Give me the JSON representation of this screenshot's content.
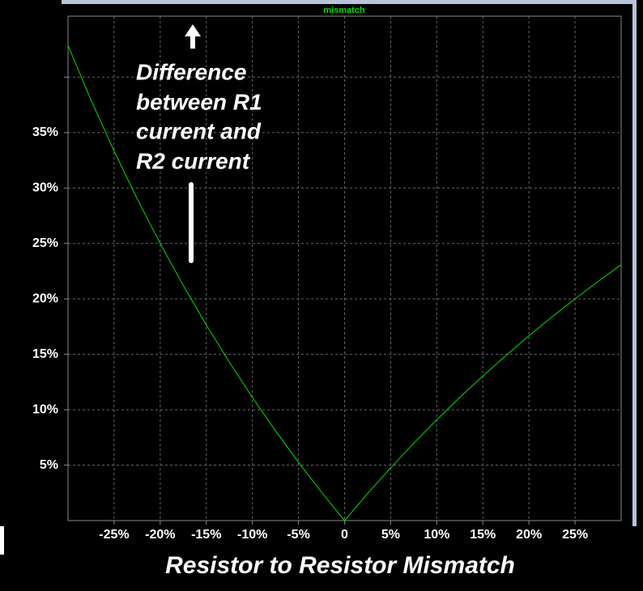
{
  "chart_data": {
    "type": "line",
    "title": "mismatch",
    "x_label": "Resistor to Resistor Mismatch",
    "annotation": [
      "Difference",
      "between R1",
      "current and",
      "R2 current"
    ],
    "x": [
      -30,
      -27.5,
      -25,
      -22.5,
      -20,
      -17.5,
      -15,
      -12.5,
      -10,
      -7.5,
      -5,
      -2.5,
      0,
      2.5,
      5,
      7.5,
      10,
      12.5,
      15,
      17.5,
      20,
      22.5,
      25,
      27.5,
      30
    ],
    "series": [
      {
        "name": "mismatch",
        "color": "#00e000",
        "values": [
          42.86,
          37.93,
          33.33,
          29.03,
          25.0,
          21.21,
          17.65,
          14.29,
          11.11,
          8.11,
          5.26,
          2.56,
          0,
          2.44,
          4.76,
          6.98,
          9.09,
          11.11,
          13.04,
          14.89,
          16.67,
          18.37,
          20.0,
          21.57,
          23.08
        ]
      }
    ],
    "xlim": [
      -30,
      30
    ],
    "xticks": [
      {
        "value": -25,
        "label": "-25%"
      },
      {
        "value": -20,
        "label": "-20%"
      },
      {
        "value": -15,
        "label": "-15%"
      },
      {
        "value": -10,
        "label": "-10%"
      },
      {
        "value": -5,
        "label": "-5%"
      },
      0,
      {
        "value": 5,
        "label": "5%"
      },
      {
        "value": 10,
        "label": "10%"
      },
      {
        "value": 15,
        "label": "15%"
      },
      {
        "value": 20,
        "label": "20%"
      },
      {
        "value": 25,
        "label": "25%"
      }
    ],
    "ylim": [
      0,
      45.5
    ],
    "yticks": [
      {
        "value": 5,
        "label": "5%"
      },
      {
        "value": 10,
        "label": "10%"
      },
      {
        "value": 15,
        "label": "15%"
      },
      {
        "value": 20,
        "label": "20%"
      },
      {
        "value": 25,
        "label": "25%"
      },
      {
        "value": 30,
        "label": "30%"
      },
      {
        "value": 35,
        "label": "35%"
      },
      {
        "value": 40,
        "label": null
      }
    ],
    "grid": true
  }
}
